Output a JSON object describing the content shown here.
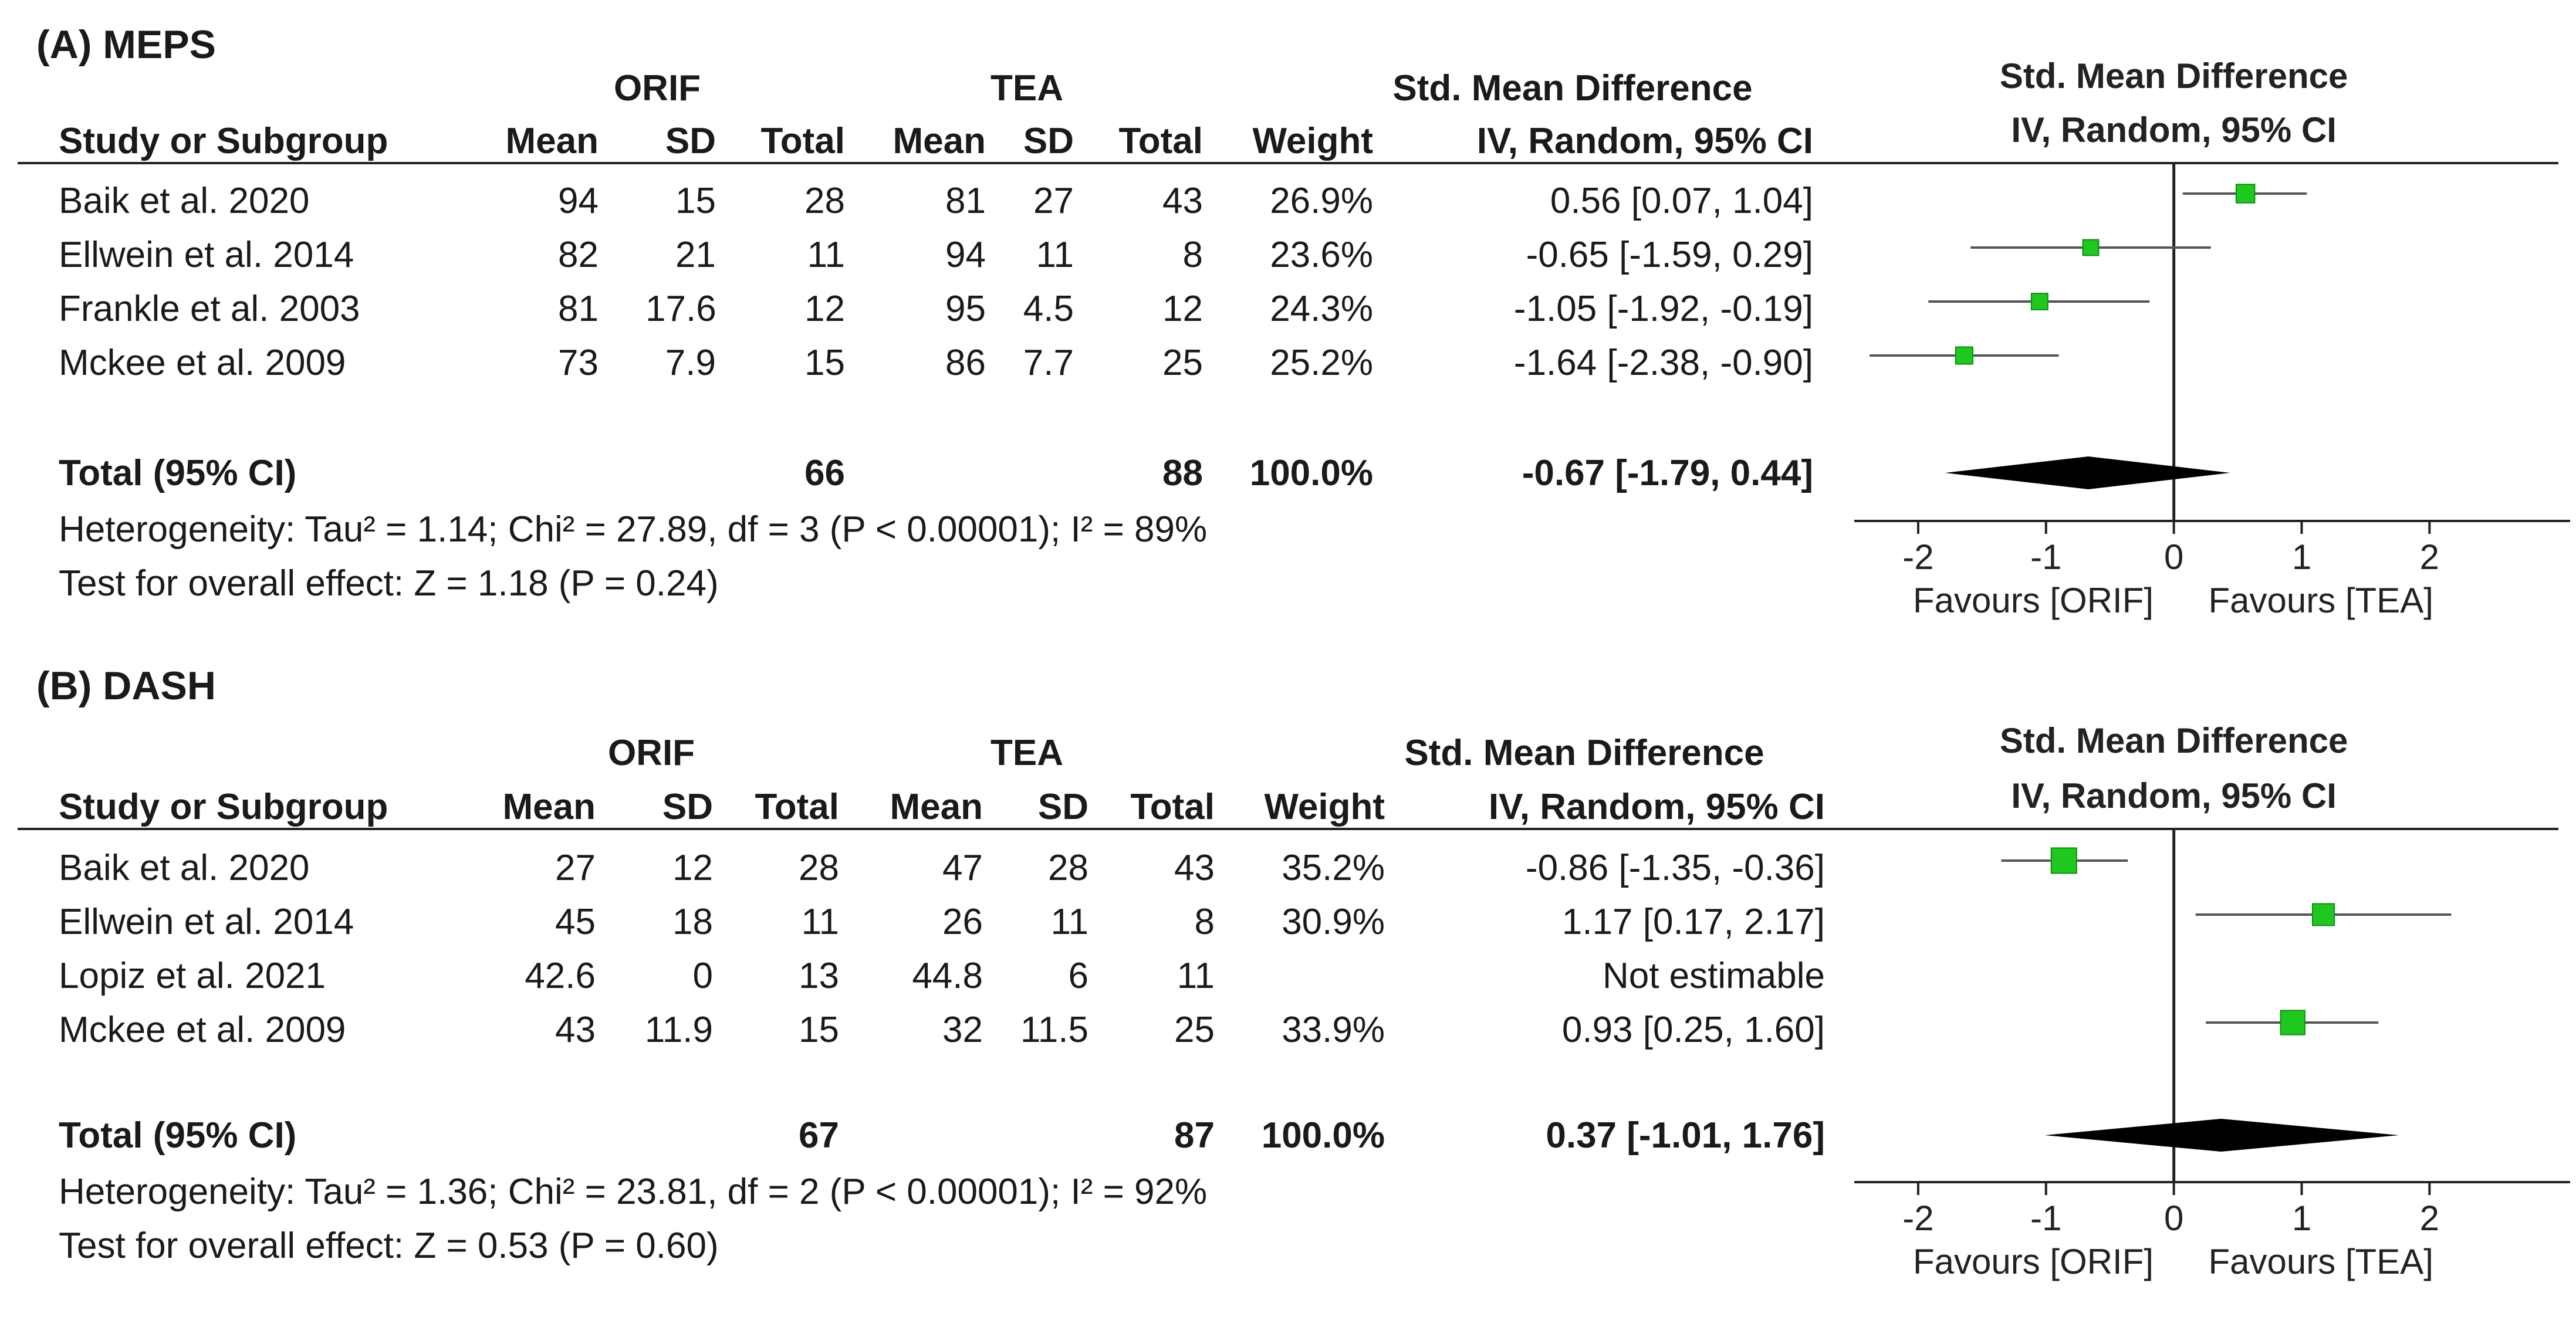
{
  "panels": [
    {
      "title": "(A) MEPS",
      "group1": "ORIF",
      "group2": "TEA",
      "headers": {
        "study": "Study or Subgroup",
        "mean": "Mean",
        "sd": "SD",
        "total": "Total",
        "weight": "Weight",
        "smd_title": "Std. Mean Difference",
        "smd_method": "IV, Random, 95% CI",
        "plot_title": "Std. Mean Difference",
        "plot_method": "IV, Random, 95% CI"
      },
      "rows": [
        {
          "study": "Baik et al. 2020",
          "m1": "94",
          "sd1": "15",
          "n1": "28",
          "m2": "81",
          "sd2": "27",
          "n2": "43",
          "weight": "26.9%",
          "ci": "0.56 [0.07, 1.04]"
        },
        {
          "study": "Ellwein et al. 2014",
          "m1": "82",
          "sd1": "21",
          "n1": "11",
          "m2": "94",
          "sd2": "11",
          "n2": "8",
          "weight": "23.6%",
          "ci": "-0.65 [-1.59, 0.29]"
        },
        {
          "study": "Frankle et al. 2003",
          "m1": "81",
          "sd1": "17.6",
          "n1": "12",
          "m2": "95",
          "sd2": "4.5",
          "n2": "12",
          "weight": "24.3%",
          "ci": "-1.05 [-1.92, -0.19]"
        },
        {
          "study": "Mckee et al. 2009",
          "m1": "73",
          "sd1": "7.9",
          "n1": "15",
          "m2": "86",
          "sd2": "7.7",
          "n2": "25",
          "weight": "25.2%",
          "ci": "-1.64 [-2.38, -0.90]"
        }
      ],
      "total": {
        "label": "Total (95% CI)",
        "n1": "66",
        "n2": "88",
        "weight": "100.0%",
        "ci": "-0.67 [-1.79, 0.44]"
      },
      "heterogeneity": "Heterogeneity: Tau² = 1.14; Chi² = 27.89, df = 3 (P < 0.00001); I² = 89%",
      "overall": "Test for overall effect: Z = 1.18 (P = 0.24)",
      "axis": {
        "ticks": [
          -2,
          -1,
          0,
          1,
          2
        ],
        "tick_labels": [
          "-2",
          "-1",
          "0",
          "1",
          "2"
        ],
        "left_label": "Favours [ORIF]",
        "right_label": "Favours [TEA]"
      }
    },
    {
      "title": "(B) DASH",
      "group1": "ORIF",
      "group2": "TEA",
      "headers": {
        "study": "Study or Subgroup",
        "mean": "Mean",
        "sd": "SD",
        "total": "Total",
        "weight": "Weight",
        "smd_title": "Std. Mean Difference",
        "smd_method": "IV, Random, 95% CI",
        "plot_title": "Std. Mean Difference",
        "plot_method": "IV, Random, 95% CI"
      },
      "rows": [
        {
          "study": "Baik et al. 2020",
          "m1": "27",
          "sd1": "12",
          "n1": "28",
          "m2": "47",
          "sd2": "28",
          "n2": "43",
          "weight": "35.2%",
          "ci": "-0.86 [-1.35, -0.36]"
        },
        {
          "study": "Ellwein et al. 2014",
          "m1": "45",
          "sd1": "18",
          "n1": "11",
          "m2": "26",
          "sd2": "11",
          "n2": "8",
          "weight": "30.9%",
          "ci": "1.17 [0.17, 2.17]"
        },
        {
          "study": "Lopiz et al. 2021",
          "m1": "42.6",
          "sd1": "0",
          "n1": "13",
          "m2": "44.8",
          "sd2": "6",
          "n2": "11",
          "weight": "",
          "ci": "Not estimable"
        },
        {
          "study": "Mckee et al. 2009",
          "m1": "43",
          "sd1": "11.9",
          "n1": "15",
          "m2": "32",
          "sd2": "11.5",
          "n2": "25",
          "weight": "33.9%",
          "ci": "0.93 [0.25, 1.60]"
        }
      ],
      "total": {
        "label": "Total (95% CI)",
        "n1": "67",
        "n2": "87",
        "weight": "100.0%",
        "ci": "0.37 [-1.01, 1.76]"
      },
      "heterogeneity": "Heterogeneity: Tau² = 1.36; Chi² = 23.81, df = 2 (P < 0.00001); I² = 92%",
      "overall": "Test for overall effect: Z = 0.53 (P = 0.60)",
      "axis": {
        "ticks": [
          -2,
          -1,
          0,
          1,
          2
        ],
        "tick_labels": [
          "-2",
          "-1",
          "0",
          "1",
          "2"
        ],
        "left_label": "Favours [ORIF]",
        "right_label": "Favours [TEA]"
      }
    }
  ],
  "colors": {
    "marker": "#1ec81e",
    "marker_edge": "#108c10",
    "line": "#222222",
    "diamond": "#000000"
  },
  "chart_data": [
    {
      "type": "forest",
      "title": "(A) MEPS",
      "xlim": [
        -2.5,
        3.1
      ],
      "studies": [
        {
          "name": "Baik et al. 2020",
          "estimate": 0.56,
          "lower": 0.07,
          "upper": 1.04,
          "weight": 26.9
        },
        {
          "name": "Ellwein et al. 2014",
          "estimate": -0.65,
          "lower": -1.59,
          "upper": 0.29,
          "weight": 23.6
        },
        {
          "name": "Frankle et al. 2003",
          "estimate": -1.05,
          "lower": -1.92,
          "upper": -0.19,
          "weight": 24.3
        },
        {
          "name": "Mckee et al. 2009",
          "estimate": -1.64,
          "lower": -2.38,
          "upper": -0.9,
          "weight": 25.2
        }
      ],
      "pooled": {
        "estimate": -0.67,
        "lower": -1.79,
        "upper": 0.44
      }
    },
    {
      "type": "forest",
      "title": "(B) DASH",
      "xlim": [
        -2.5,
        3.1
      ],
      "studies": [
        {
          "name": "Baik et al. 2020",
          "estimate": -0.86,
          "lower": -1.35,
          "upper": -0.36,
          "weight": 35.2
        },
        {
          "name": "Ellwein et al. 2014",
          "estimate": 1.17,
          "lower": 0.17,
          "upper": 2.17,
          "weight": 30.9
        },
        {
          "name": "Lopiz et al. 2021",
          "estimate": null,
          "lower": null,
          "upper": null,
          "weight": null
        },
        {
          "name": "Mckee et al. 2009",
          "estimate": 0.93,
          "lower": 0.25,
          "upper": 1.6,
          "weight": 33.9
        }
      ],
      "pooled": {
        "estimate": 0.37,
        "lower": -1.01,
        "upper": 1.76
      }
    }
  ]
}
